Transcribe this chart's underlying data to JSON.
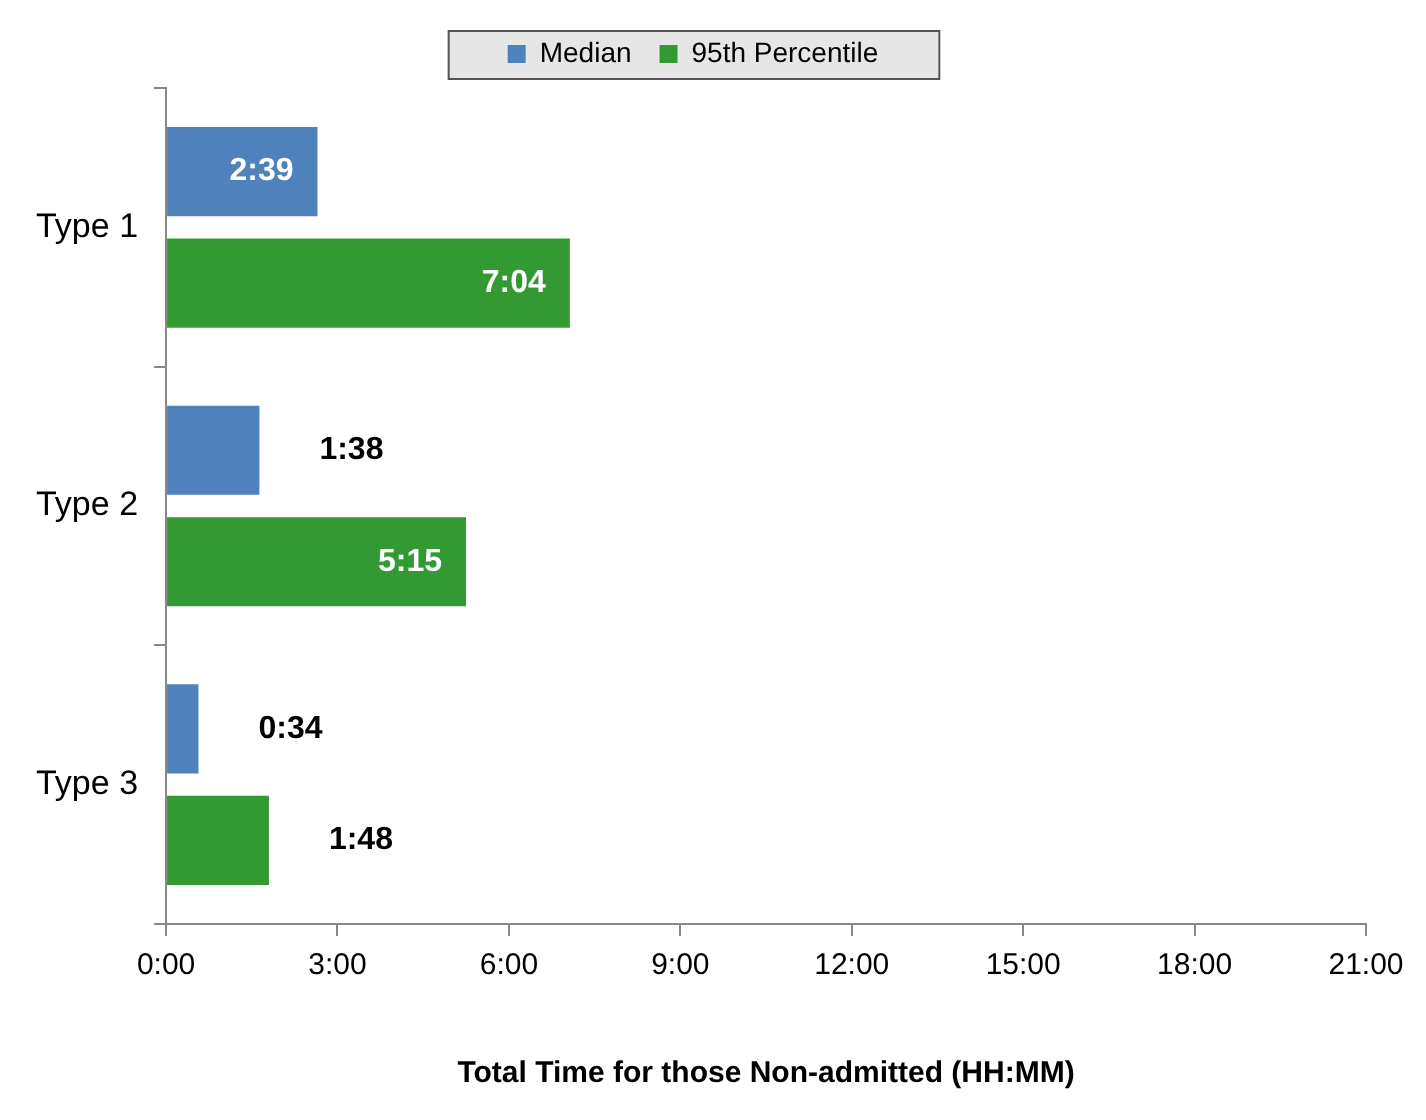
{
  "chart_data": {
    "type": "bar",
    "orientation": "horizontal",
    "xlabel": "Total Time for those Non-admitted (HH:MM)",
    "categories": [
      "Type 1",
      "Type 2",
      "Type 3"
    ],
    "series": [
      {
        "name": "Median",
        "color": "#4f81bd",
        "values": [
          2.65,
          1.6333,
          0.5667
        ],
        "value_labels": [
          "2:39",
          "1:38",
          "0:34"
        ]
      },
      {
        "name": "95th Percentile",
        "color": "#339933",
        "values": [
          7.0667,
          5.25,
          1.8
        ],
        "value_labels": [
          "7:04",
          "5:15",
          "1:48"
        ]
      }
    ],
    "xlim": [
      0,
      21
    ],
    "xticks": [
      {
        "value": 0,
        "label": "0:00"
      },
      {
        "value": 3,
        "label": "3:00"
      },
      {
        "value": 6,
        "label": "6:00"
      },
      {
        "value": 9,
        "label": "9:00"
      },
      {
        "value": 12,
        "label": "12:00"
      },
      {
        "value": 15,
        "label": "15:00"
      },
      {
        "value": 18,
        "label": "18:00"
      },
      {
        "value": 21,
        "label": "21:00"
      }
    ],
    "grid": false,
    "legend": "top"
  }
}
